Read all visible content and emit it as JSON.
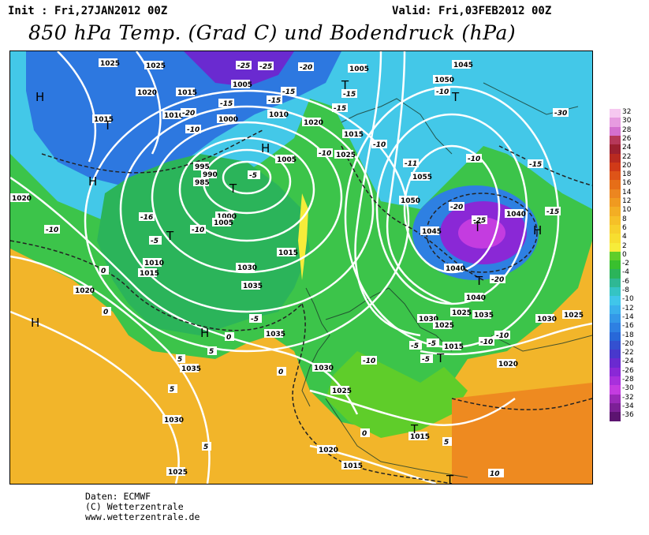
{
  "header": {
    "init": "Init : Fri,27JAN2012  00Z",
    "valid": "Valid: Fri,03FEB2012  00Z",
    "title": "850 hPa Temp. (Grad C) und Bodendruck (hPa)"
  },
  "credits": {
    "line1": "Daten: ECMWF",
    "line2": "(C) Wetterzentrale",
    "line3": "www.wetterzentrale.de"
  },
  "legend": {
    "labels": [
      "32",
      "30",
      "28",
      "26",
      "24",
      "22",
      "20",
      "18",
      "16",
      "14",
      "12",
      "10",
      "8",
      "6",
      "4",
      "2",
      "0",
      "-2",
      "-4",
      "-6",
      "-8",
      "-10",
      "-12",
      "-14",
      "-16",
      "-18",
      "-20",
      "-22",
      "-24",
      "-26",
      "-28",
      "-30",
      "-32",
      "-34",
      "-36"
    ],
    "colors": [
      "#f6c8f0",
      "#e79be0",
      "#d46fcf",
      "#b6385a",
      "#9c2030",
      "#b82a20",
      "#d03a18",
      "#de5418",
      "#e66e18",
      "#ec8620",
      "#f09a20",
      "#f3ae24",
      "#f6c028",
      "#f7d02c",
      "#f7de30",
      "#f6ec3a",
      "#5fcd2a",
      "#39c02e",
      "#2bb45a",
      "#2fb894",
      "#35c4c4",
      "#40c6ea",
      "#3ab0ec",
      "#3498e8",
      "#2e80e2",
      "#2868d8",
      "#3450d0",
      "#4838cc",
      "#6a2ad0",
      "#8a28d6",
      "#a830dc",
      "#c43ce0",
      "#9a2ab8",
      "#7c2096",
      "#5c1470"
    ]
  },
  "map": {
    "pressure_labels": [
      "1025",
      "1025",
      "1020",
      "1015",
      "1015",
      "1010",
      "1005",
      "1000",
      "995",
      "990",
      "985",
      "1000",
      "1005",
      "1010",
      "1015",
      "1020",
      "1020",
      "1030",
      "1035",
      "1035",
      "1030",
      "1025",
      "1020",
      "1015",
      "1005",
      "1010",
      "1005",
      "1020",
      "1015",
      "1025",
      "1015",
      "1045",
      "1050",
      "1055",
      "1050",
      "1045",
      "1040",
      "1040",
      "1040",
      "1035",
      "1030",
      "1025",
      "1030",
      "1025",
      "1020",
      "1015",
      "1025",
      "1035",
      "1030",
      "1025",
      "1015"
    ],
    "temp_labels": [
      "-25",
      "-25",
      "-20",
      "-15",
      "-15",
      "-20",
      "-10",
      "-15",
      "-15",
      "-10",
      "-10",
      "-5",
      "-16",
      "-10",
      "-5",
      "0",
      "-10",
      "-5",
      "0",
      "0",
      "5",
      "5",
      "-5",
      "-11",
      "-10",
      "-15",
      "-30",
      "-10",
      "-15",
      "-20",
      "-20",
      "-25",
      "-15",
      "-10",
      "-5",
      "-10",
      "-10",
      "0",
      "5",
      "5",
      "10",
      "5",
      "0",
      "-5"
    ],
    "highs": [
      "H",
      "H",
      "H",
      "H",
      "H",
      "H"
    ],
    "lows": [
      "T",
      "T",
      "T",
      "T",
      "T",
      "T",
      "T",
      "T",
      "T",
      "T"
    ]
  }
}
